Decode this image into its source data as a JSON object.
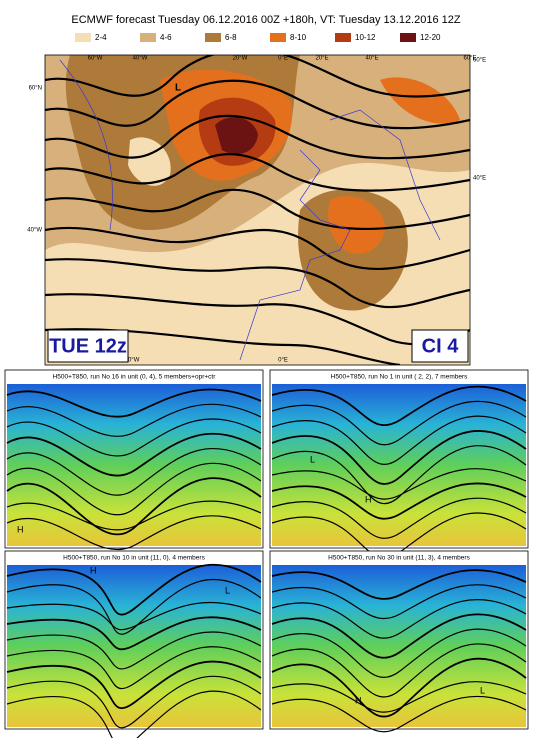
{
  "header": {
    "title": "ECMWF forecast Tuesday  06.12.2016 00Z +180h, VT: Tuesday  13.12.2016 12Z"
  },
  "legend": {
    "items": [
      {
        "label": "2-4",
        "color": "#f6deb4"
      },
      {
        "label": "4-6",
        "color": "#d8b07c"
      },
      {
        "label": "6-8",
        "color": "#ad7a3a"
      },
      {
        "label": "8-10",
        "color": "#e4701e"
      },
      {
        "label": "10-12",
        "color": "#b53c12"
      },
      {
        "label": "12-20",
        "color": "#6b1212"
      }
    ]
  },
  "main_map": {
    "top_labels": [
      "60°W",
      "40°W",
      "20°W",
      "0°E",
      "20°E",
      "40°E",
      "60°E"
    ],
    "left_labels": [
      "60°N",
      "40°W"
    ],
    "right_labels": [
      "60°E",
      "40°E"
    ],
    "bottom_labels": [
      "20°W",
      "0°E",
      "20°E"
    ],
    "centers": [
      "L"
    ],
    "left_box": "TUE 12z",
    "right_box": "CI  4"
  },
  "panels": [
    {
      "title": "H500+T850, run No 16 in unit (0, 4),  5 members+opr+ctr",
      "centers": [
        "H"
      ]
    },
    {
      "title": "H500+T850, run No 1 in unit ( 2, 2),  7 members",
      "centers": [
        "L",
        "H"
      ]
    },
    {
      "title": "H500+T850, run No 10 in unit (11, 0),  4 members",
      "centers": [
        "H",
        "L"
      ]
    },
    {
      "title": "H500+T850, run No 30 in unit (11, 3),  4 members",
      "centers": [
        "H",
        "L"
      ]
    }
  ]
}
